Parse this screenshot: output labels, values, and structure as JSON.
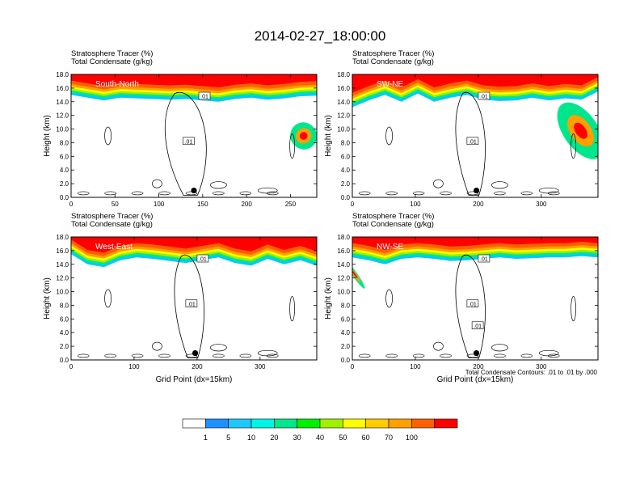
{
  "title": "2014-02-27_18:00:00",
  "footnote": "Total Condensate Contours: .01 to .01 by .000",
  "colorbar": {
    "labels": [
      "1",
      "5",
      "10",
      "20",
      "30",
      "40",
      "50",
      "60",
      "70",
      "100"
    ],
    "colors": [
      "#ffffff",
      "#1e90ff",
      "#1ec8ff",
      "#00f5e6",
      "#00e68c",
      "#00f000",
      "#a0f000",
      "#ffff00",
      "#ffcc00",
      "#ffa000",
      "#ff6000",
      "#ff0000"
    ]
  },
  "chart_data": [
    {
      "type": "heatmap",
      "header_lines": [
        "Stratosphere Tracer   (%)",
        "Total Condensate   (g/kg)"
      ],
      "panel_label": "South-North",
      "ylabel": "Height (km)",
      "xlabel": "",
      "xlim": [
        0,
        280
      ],
      "ylim": [
        0,
        18
      ],
      "x_ticks": [
        "0",
        "50",
        "100",
        "150",
        "200",
        "250"
      ],
      "y_ticks": [
        "0.0",
        "2.0",
        "4.0",
        "6.0",
        "8.0",
        "10.0",
        "12.0",
        "14.0",
        "16.0",
        "18.0"
      ],
      "contour_labels": [
        ".01",
        ".01"
      ],
      "marker": {
        "x": 140,
        "y": 1.0
      },
      "tropopause_km": [
        15.0,
        14.6,
        14.2,
        14.6,
        14.5,
        14.4,
        14.3,
        14.4,
        14.2,
        14.0,
        14.4,
        14.6,
        14.3,
        14.5,
        14.8,
        14.9
      ],
      "intrusion": {
        "x": [
          250,
          280
        ],
        "y": [
          7.0,
          11.0
        ]
      }
    },
    {
      "type": "heatmap",
      "header_lines": [
        "Stratosphere Tracer   (%)",
        "Total Condensate   (g/kg)"
      ],
      "panel_label": "SW-NE",
      "ylabel": "Height (km)",
      "xlabel": "",
      "xlim": [
        0,
        390
      ],
      "ylim": [
        0,
        18
      ],
      "x_ticks": [
        "0",
        "100",
        "200",
        "300"
      ],
      "y_ticks": [
        "0.0",
        "2.0",
        "4.0",
        "6.0",
        "8.0",
        "10.0",
        "12.0",
        "14.0",
        "16.0",
        "18.0"
      ],
      "contour_labels": [
        ".01",
        ".01"
      ],
      "marker": {
        "x": 197,
        "y": 1.0
      },
      "tropopause_km": [
        13.2,
        14.2,
        15.0,
        14.0,
        15.2,
        14.0,
        14.6,
        15.0,
        14.3,
        14.1,
        14.2,
        14.6,
        14.2,
        14.5,
        14.3,
        15.5
      ],
      "intrusion": {
        "x": [
          335,
          390
        ],
        "y": [
          5.0,
          14.5
        ]
      }
    },
    {
      "type": "heatmap",
      "header_lines": [
        "Stratosphere Tracer   (%)",
        "Total Condensate   (g/kg)"
      ],
      "panel_label": "West-East",
      "ylabel": "Height (km)",
      "xlabel": "Grid Point (dx=15km)",
      "xlim": [
        0,
        390
      ],
      "ylim": [
        0,
        18
      ],
      "x_ticks": [
        "0",
        "100",
        "200",
        "300"
      ],
      "y_ticks": [
        "0.0",
        "2.0",
        "4.0",
        "6.0",
        "8.0",
        "10.0",
        "12.0",
        "14.0",
        "16.0",
        "18.0"
      ],
      "contour_labels": [
        ".01",
        ".01"
      ],
      "marker": {
        "x": 197,
        "y": 1.0
      },
      "tropopause_km": [
        15.5,
        14.0,
        13.6,
        14.6,
        15.0,
        14.8,
        14.5,
        14.2,
        14.6,
        15.0,
        14.2,
        13.8,
        14.8,
        14.0,
        14.6,
        13.8
      ],
      "intrusion": null
    },
    {
      "type": "heatmap",
      "header_lines": [
        "Stratosphere Tracer   (%)",
        "Total Condensate   (g/kg)"
      ],
      "panel_label": "NW-SE",
      "ylabel": "Height (km)",
      "xlabel": "Grid Point (dx=15km)",
      "xlim": [
        0,
        390
      ],
      "ylim": [
        0,
        18
      ],
      "x_ticks": [
        "0",
        "100",
        "200",
        "300"
      ],
      "y_ticks": [
        "0.0",
        "2.0",
        "4.0",
        "6.0",
        "8.0",
        "10.0",
        "12.0",
        "14.0",
        "16.0",
        "18.0"
      ],
      "contour_labels": [
        ".01",
        ".01",
        ".01"
      ],
      "marker": {
        "x": 197,
        "y": 1.0
      },
      "tropopause_km": [
        15.0,
        14.6,
        14.0,
        14.8,
        15.0,
        14.8,
        14.5,
        14.6,
        14.8,
        15.0,
        14.8,
        14.9,
        15.0,
        15.0,
        15.2,
        15.0
      ],
      "intrusion": {
        "x": [
          0,
          8
        ],
        "y": [
          10.0,
          15.0
        ]
      }
    }
  ]
}
